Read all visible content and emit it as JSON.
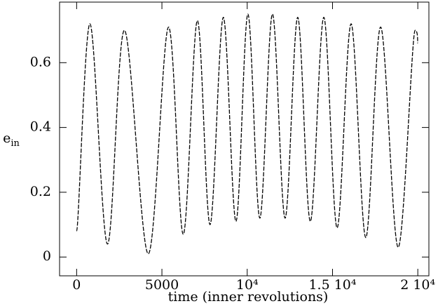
{
  "chart_data": {
    "type": "line",
    "xlabel": "time (inner revolutions)",
    "ylabel": {
      "main": "e",
      "sub": "in"
    },
    "x": [
      0,
      780,
      1810,
      2800,
      4200,
      5390,
      6250,
      7080,
      7820,
      8600,
      9340,
      10040,
      10740,
      11480,
      12220,
      12960,
      13700,
      14490,
      15270,
      16090,
      16950,
      17820,
      18850,
      19840,
      20000
    ],
    "series": [
      {
        "name": "e_in",
        "color": "#000000",
        "values": [
          0.08,
          0.72,
          0.04,
          0.7,
          0.01,
          0.71,
          0.07,
          0.73,
          0.1,
          0.74,
          0.11,
          0.75,
          0.12,
          0.75,
          0.12,
          0.74,
          0.11,
          0.74,
          0.09,
          0.72,
          0.06,
          0.71,
          0.03,
          0.7,
          0.66
        ]
      }
    ],
    "xlim": [
      -1000,
      20650
    ],
    "ylim": [
      -0.058,
      0.787
    ],
    "xticks": [
      0,
      5000,
      {
        "value": 10000,
        "label": "10⁴"
      },
      {
        "value": 15000,
        "label": "1.5 10⁴"
      },
      {
        "value": 20000,
        "label": "2 10⁴"
      }
    ],
    "yticks": [
      0,
      0.2,
      0.4,
      0.6
    ],
    "line_style": "dashed"
  }
}
